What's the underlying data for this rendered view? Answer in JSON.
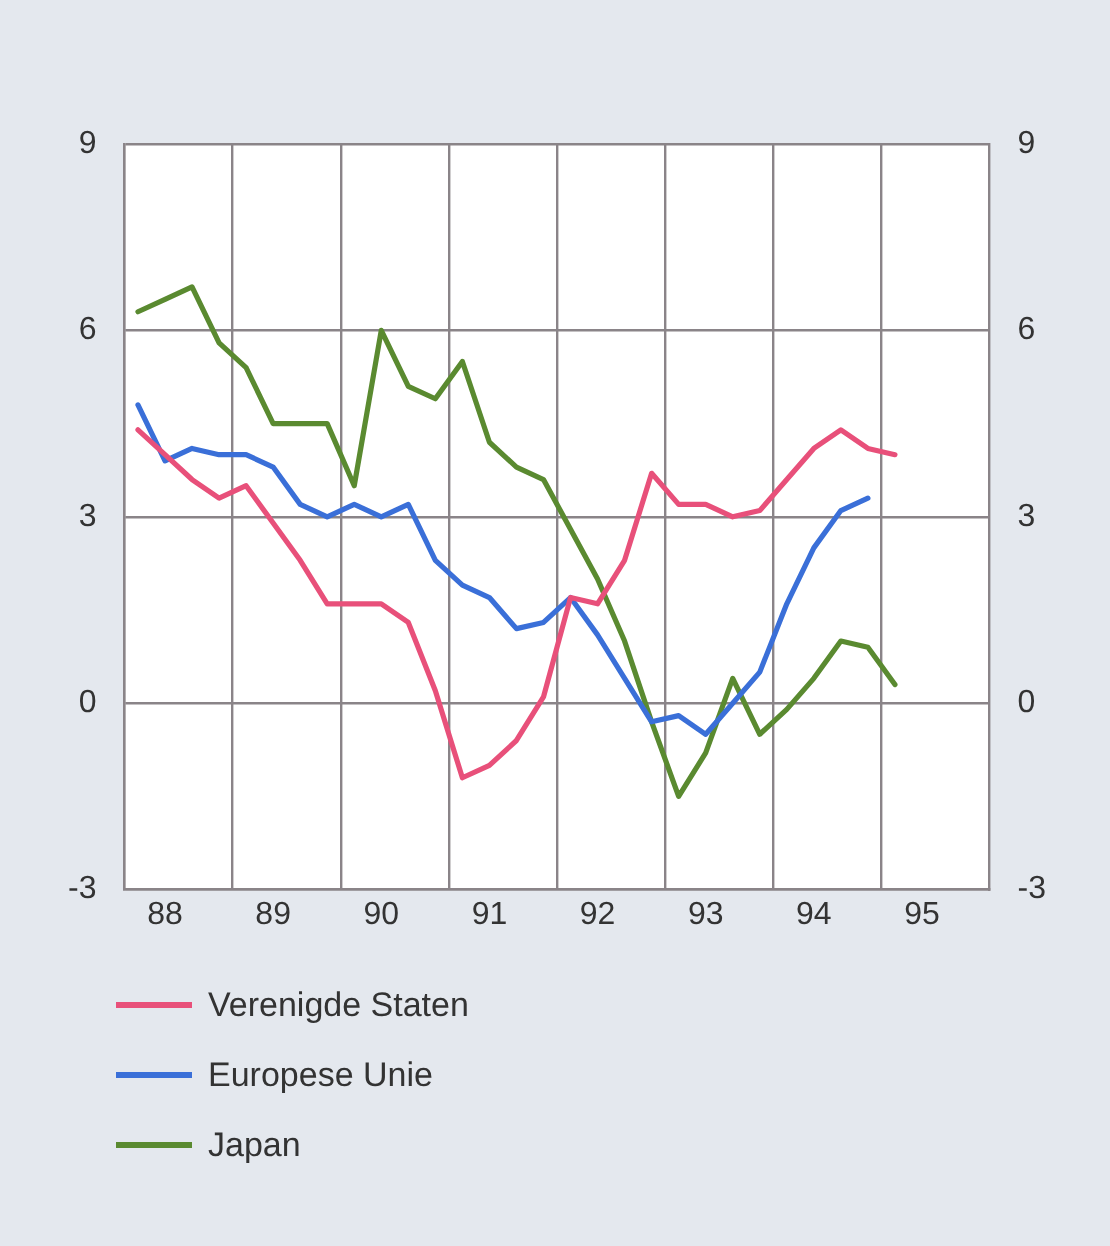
{
  "chart_data": {
    "type": "line",
    "ylim": [
      -3,
      9
    ],
    "y2lim": [
      -3,
      9
    ],
    "categories": [
      null,
      "88",
      null,
      null,
      null,
      "89",
      null,
      null,
      null,
      "90",
      null,
      null,
      null,
      "91",
      null,
      null,
      null,
      "92",
      null,
      null,
      null,
      "93",
      null,
      null,
      null,
      "94",
      null,
      null,
      null,
      "95",
      null,
      null
    ],
    "yticks": [
      -3,
      0,
      3,
      6,
      9
    ],
    "y2ticks": [
      -3,
      0,
      3,
      6,
      9
    ],
    "grid": true,
    "legend": "bottom",
    "marker": "none",
    "line_style": "solid",
    "series": [
      {
        "name": "Verenigde Staten",
        "color": "#e8507a",
        "values": [
          4.4,
          4.0,
          3.6,
          3.3,
          3.5,
          2.9,
          2.3,
          1.6,
          1.6,
          1.6,
          1.3,
          0.2,
          -1.2,
          -1.0,
          -0.6,
          0.1,
          1.7,
          1.6,
          2.3,
          3.7,
          3.2,
          3.2,
          3.0,
          3.1,
          3.6,
          4.1,
          4.4,
          4.1,
          4.0,
          null,
          null,
          null
        ]
      },
      {
        "name": "Europese Unie",
        "color": "#3a6fd8",
        "values": [
          4.8,
          3.9,
          4.1,
          4.0,
          4.0,
          3.8,
          3.2,
          3.0,
          3.2,
          3.0,
          3.2,
          2.3,
          1.9,
          1.7,
          1.2,
          1.3,
          1.7,
          1.1,
          0.4,
          -0.3,
          -0.2,
          -0.5,
          0.0,
          0.5,
          1.6,
          2.5,
          3.1,
          3.3,
          null,
          null,
          null,
          null
        ]
      },
      {
        "name": "Japan",
        "color": "#5a8a30",
        "values": [
          6.3,
          6.5,
          6.7,
          5.8,
          5.4,
          4.5,
          4.5,
          4.5,
          3.5,
          6.0,
          5.1,
          4.9,
          5.5,
          4.2,
          3.8,
          3.6,
          2.8,
          2.0,
          1.0,
          -0.3,
          -1.5,
          -0.8,
          0.4,
          -0.5,
          -0.1,
          0.4,
          1.0,
          0.9,
          0.3,
          null,
          null,
          null
        ]
      }
    ]
  }
}
